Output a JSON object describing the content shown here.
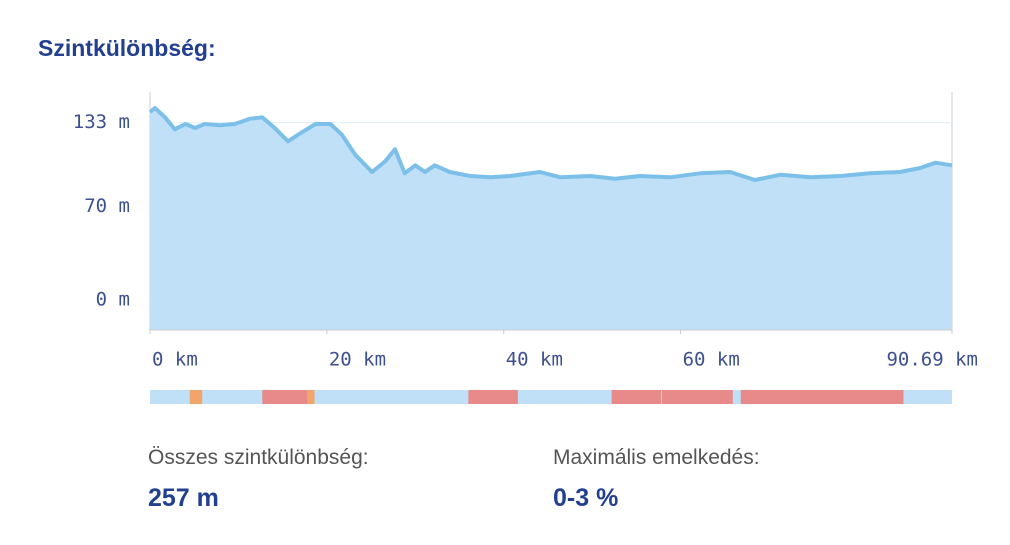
{
  "header": {
    "title": "Szintkülönbség:"
  },
  "chart_data": {
    "type": "area",
    "x": [
      0,
      0.57,
      1.7,
      2.8,
      4.0,
      5.1,
      6.2,
      7.9,
      9.6,
      11.3,
      12.7,
      14.1,
      15.6,
      17.0,
      18.7,
      20.4,
      21.7,
      23.2,
      25.1,
      26.6,
      27.7,
      28.8,
      30.0,
      31.1,
      32.2,
      33.9,
      36.2,
      38.5,
      40.7,
      44.1,
      46.4,
      49.8,
      52.6,
      55.4,
      58.8,
      62.2,
      65.6,
      68.4,
      71.3,
      74.7,
      78.1,
      81.4,
      84.8,
      87.1,
      88.8,
      90.69
    ],
    "series": [
      {
        "color": "#7cc0ea",
        "fill": "#bfe0f6",
        "values": [
          141,
          144,
          137,
          128,
          132,
          129,
          132,
          131,
          132,
          136,
          137,
          129,
          119,
          125,
          132,
          132,
          124,
          109,
          96,
          104,
          113,
          95,
          101,
          96,
          101,
          96,
          93,
          92,
          93,
          96,
          92,
          93,
          91,
          93,
          92,
          95,
          96,
          90,
          94,
          92,
          93,
          95,
          96,
          99,
          103,
          101
        ]
      }
    ],
    "xlim": [
      0,
      90.69
    ],
    "ylim": [
      -22.5,
      156
    ],
    "xticks": [
      {
        "value": 0,
        "label": "0 km"
      },
      {
        "value": 20,
        "label": "20 km"
      },
      {
        "value": 40,
        "label": "40 km"
      },
      {
        "value": 60,
        "label": "60 km"
      },
      {
        "value": 90.69,
        "label": "90.69 km"
      }
    ],
    "yticks": [
      {
        "value": 0,
        "label": "0 m"
      },
      {
        "value": 70,
        "label": "70 m"
      },
      {
        "value": 133,
        "label": "133 m"
      }
    ],
    "grid": true,
    "grade_segments": [
      {
        "start": 4.5,
        "end": 5.9,
        "color": "#f2a46a"
      },
      {
        "start": 12.7,
        "end": 17.8,
        "color": "#e88a8a"
      },
      {
        "start": 17.8,
        "end": 18.6,
        "color": "#f2a46a"
      },
      {
        "start": 36.0,
        "end": 41.6,
        "color": "#e88a8a"
      },
      {
        "start": 52.2,
        "end": 57.8,
        "color": "#e88a8a"
      },
      {
        "start": 57.9,
        "end": 65.9,
        "color": "#e88a8a"
      },
      {
        "start": 66.8,
        "end": 85.2,
        "color": "#e88a8a"
      }
    ]
  },
  "stats": [
    {
      "label": "Összes szintkülönbség:",
      "value": "257 m"
    },
    {
      "label": "Maximális emelkedés:",
      "value": "0-3 %"
    }
  ]
}
